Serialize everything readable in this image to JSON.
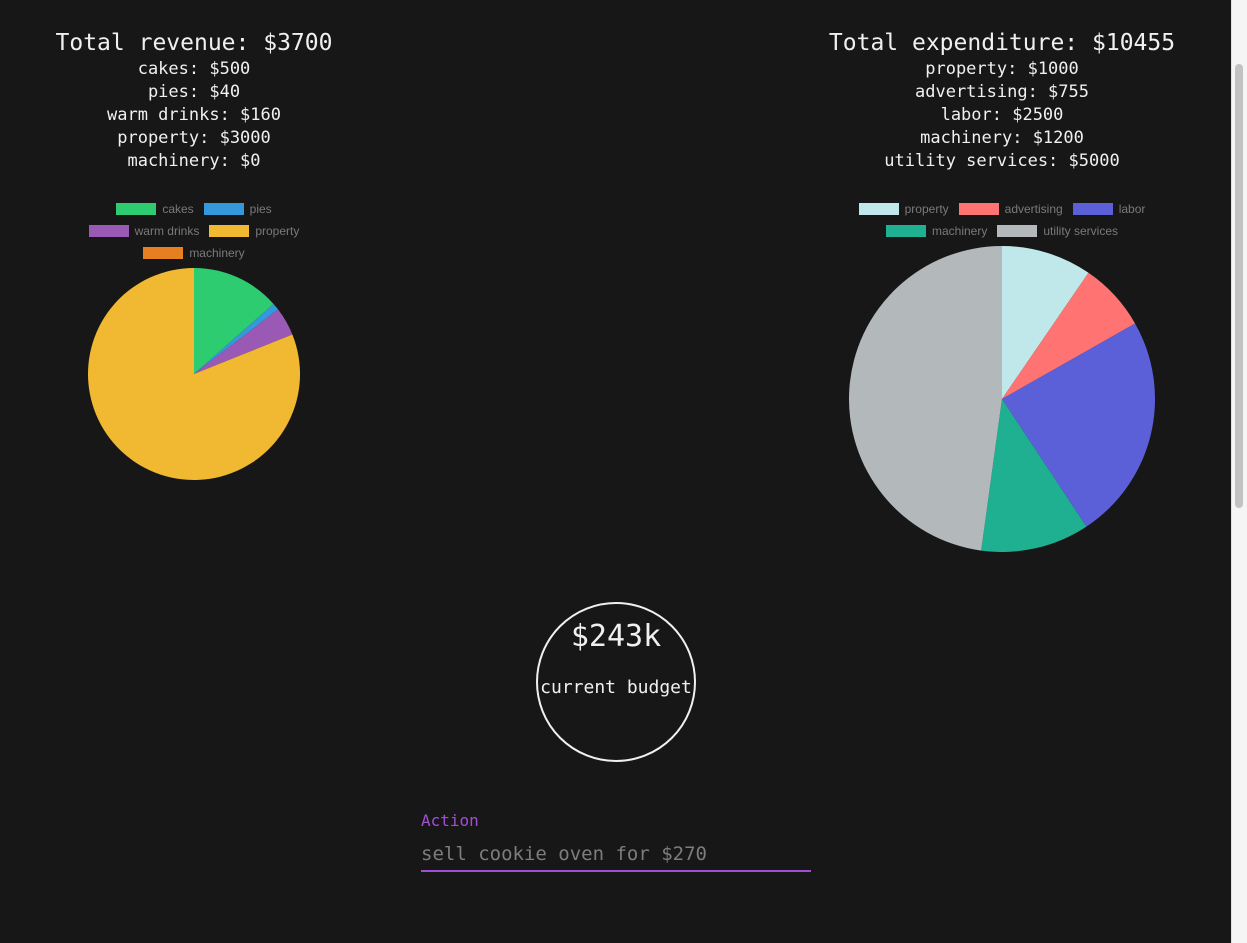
{
  "revenue": {
    "title": "Total revenue: $3700",
    "lines": [
      "cakes: $500",
      "pies: $40",
      "warm drinks: $160",
      "property: $3000",
      "machinery: $0"
    ]
  },
  "expenditure": {
    "title": "Total expenditure: $10455",
    "lines": [
      "property: $1000",
      "advertising: $755",
      "labor: $2500",
      "machinery: $1200",
      "utility services: $5000"
    ]
  },
  "budget": {
    "value": "$243k",
    "label": "current budget"
  },
  "action": {
    "label": "Action",
    "placeholder": "sell cookie oven for $270"
  },
  "chart_data": [
    {
      "type": "pie",
      "categories": [
        "cakes",
        "pies",
        "warm drinks",
        "property",
        "machinery"
      ],
      "values": [
        500,
        40,
        160,
        3000,
        0
      ],
      "colors": [
        "#2ecc71",
        "#3498db",
        "#9b59b6",
        "#f0b931",
        "#e67e22"
      ],
      "legend": "top"
    },
    {
      "type": "pie",
      "categories": [
        "property",
        "advertising",
        "labor",
        "machinery",
        "utility services"
      ],
      "values": [
        1000,
        755,
        2500,
        1200,
        5000
      ],
      "colors": [
        "#c0e8eb",
        "#ff7373",
        "#5b60d8",
        "#1fb091",
        "#b3b8bb"
      ],
      "legend": "top"
    }
  ]
}
